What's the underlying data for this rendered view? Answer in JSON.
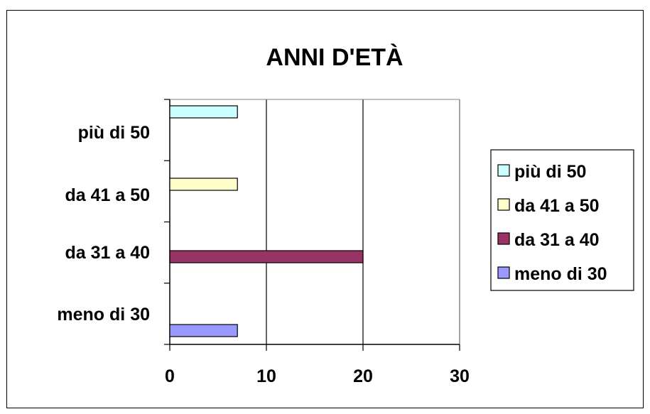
{
  "chart_data": {
    "type": "bar",
    "orientation": "horizontal",
    "title": "ANNI D'ETÀ",
    "categories": [
      "più di 50",
      "da 41 a 50",
      "da 31 a 40",
      "meno di 30"
    ],
    "series": [
      {
        "name": "più di 50",
        "values": [
          7,
          null,
          null,
          null
        ],
        "color": "#ccffff"
      },
      {
        "name": "da 41 a 50",
        "values": [
          null,
          7,
          null,
          null
        ],
        "color": "#ffffcc"
      },
      {
        "name": "da 31 a 40",
        "values": [
          null,
          null,
          20,
          null
        ],
        "color": "#993366"
      },
      {
        "name": "meno di 30",
        "values": [
          null,
          null,
          null,
          7
        ],
        "color": "#9999ff"
      }
    ],
    "xlim": [
      0,
      30
    ],
    "xticks": [
      0,
      10,
      20,
      30
    ],
    "xlabel": "",
    "ylabel": "",
    "grid": "vertical",
    "legend_position": "right"
  }
}
